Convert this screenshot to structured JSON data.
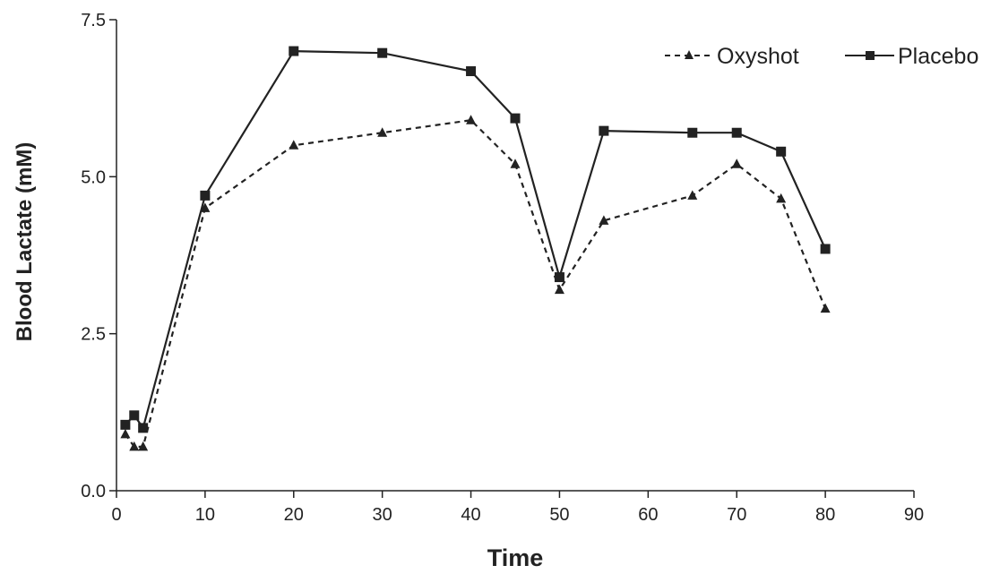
{
  "chart_data": {
    "type": "line",
    "title": "",
    "xlabel": "Time",
    "ylabel": "Blood Lactate (mM)",
    "xlim": [
      0,
      90
    ],
    "ylim": [
      0,
      7.5
    ],
    "x_ticks": [
      0,
      10,
      20,
      30,
      40,
      50,
      60,
      70,
      80,
      90
    ],
    "y_ticks": [
      0.0,
      2.5,
      5.0,
      7.5
    ],
    "x_tick_labels": [
      "0",
      "10",
      "20",
      "30",
      "40",
      "50",
      "60",
      "70",
      "80",
      "90"
    ],
    "y_tick_labels": [
      "0.0",
      "2.5",
      "5.0",
      "7.5"
    ],
    "grid": false,
    "legend_position": "top-right",
    "series": [
      {
        "name": "Oxyshot",
        "line_style": "dashed",
        "marker": "triangle",
        "color": "#222222",
        "x": [
          1,
          2,
          3,
          10,
          20,
          30,
          40,
          45,
          50,
          55,
          65,
          70,
          75,
          80
        ],
        "y": [
          0.9,
          0.7,
          0.7,
          4.5,
          5.5,
          5.7,
          5.9,
          5.2,
          3.2,
          4.3,
          4.7,
          5.2,
          4.65,
          2.9
        ]
      },
      {
        "name": "Placebo",
        "line_style": "solid",
        "marker": "square",
        "color": "#222222",
        "x": [
          1,
          2,
          3,
          10,
          20,
          30,
          40,
          45,
          50,
          55,
          65,
          70,
          75,
          80
        ],
        "y": [
          1.05,
          1.2,
          1.0,
          4.7,
          7.0,
          6.97,
          6.68,
          5.93,
          3.4,
          5.73,
          5.7,
          5.7,
          5.4,
          3.85
        ]
      }
    ]
  }
}
